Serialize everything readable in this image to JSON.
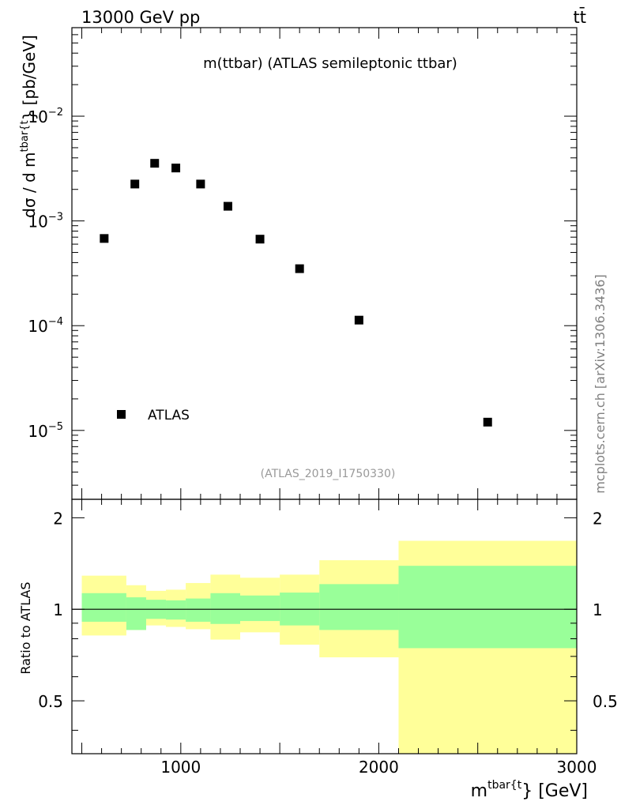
{
  "header": {
    "energy_label": "13000 GeV pp",
    "process_label": "tt̄"
  },
  "side_label": "mcplots.cern.ch [arXiv:1306.3436]",
  "chart_data": [
    {
      "type": "scatter",
      "title": "m(ttbar) (ATLAS semileptonic ttbar)",
      "analysis_label": "(ATLAS_2019_I1750330)",
      "xlabel": "m^{tbar{t}} [GeV]",
      "ylabel": "dσ / d m^{tbar{t}} [pb/GeV]",
      "xlim": [
        450,
        3000
      ],
      "ylim": [
        2.2e-06,
        0.07
      ],
      "yscale": "log",
      "xticks": [
        1000,
        2000,
        3000
      ],
      "ytick_labels": [
        {
          "base": "10",
          "exp": "−2",
          "value": 0.01
        },
        {
          "base": "10",
          "exp": "−3",
          "value": 0.001
        },
        {
          "base": "10",
          "exp": "−4",
          "value": 0.0001
        },
        {
          "base": "10",
          "exp": "−5",
          "value": 1e-05
        }
      ],
      "legend": {
        "placement": "bottom-left",
        "entries": [
          "ATLAS"
        ]
      },
      "series": [
        {
          "name": "ATLAS",
          "marker": "square",
          "color": "#000000",
          "points": [
            {
              "x": 613,
              "y": 0.00068
            },
            {
              "x": 768,
              "y": 0.00225
            },
            {
              "x": 868,
              "y": 0.00355
            },
            {
              "x": 975,
              "y": 0.0032
            },
            {
              "x": 1100,
              "y": 0.00225
            },
            {
              "x": 1238,
              "y": 0.00138
            },
            {
              "x": 1400,
              "y": 0.00067
            },
            {
              "x": 1600,
              "y": 0.00035
            },
            {
              "x": 1900,
              "y": 0.000113
            },
            {
              "x": 2550,
              "y": 1.2e-05
            }
          ]
        }
      ]
    },
    {
      "type": "area",
      "ylabel": "Ratio to ATLAS",
      "xlim": [
        450,
        3000
      ],
      "ylim": [
        0.335,
        2.3
      ],
      "yscale": "log",
      "ytick_labels": [
        "2",
        "1",
        "0.5"
      ],
      "ytick_values": [
        2,
        1,
        0.5
      ],
      "reference_line": 1,
      "colors": {
        "outer_band": "#ffff99",
        "inner_band": "#99ff99",
        "line": "#000000"
      },
      "bins": [
        {
          "lo": 500,
          "hi": 725,
          "inner": [
            0.91,
            1.13
          ],
          "outer": [
            0.82,
            1.29
          ]
        },
        {
          "lo": 725,
          "hi": 825,
          "inner": [
            0.855,
            1.095
          ],
          "outer": [
            0.855,
            1.2
          ]
        },
        {
          "lo": 825,
          "hi": 925,
          "inner": [
            0.93,
            1.075
          ],
          "outer": [
            0.885,
            1.15
          ]
        },
        {
          "lo": 925,
          "hi": 1025,
          "inner": [
            0.925,
            1.07
          ],
          "outer": [
            0.875,
            1.16
          ]
        },
        {
          "lo": 1025,
          "hi": 1150,
          "inner": [
            0.91,
            1.085
          ],
          "outer": [
            0.86,
            1.22
          ]
        },
        {
          "lo": 1150,
          "hi": 1300,
          "inner": [
            0.895,
            1.13
          ],
          "outer": [
            0.795,
            1.3
          ]
        },
        {
          "lo": 1300,
          "hi": 1500,
          "inner": [
            0.915,
            1.11
          ],
          "outer": [
            0.84,
            1.27
          ]
        },
        {
          "lo": 1500,
          "hi": 1700,
          "inner": [
            0.885,
            1.135
          ],
          "outer": [
            0.765,
            1.3
          ]
        },
        {
          "lo": 1700,
          "hi": 2100,
          "inner": [
            0.855,
            1.21
          ],
          "outer": [
            0.695,
            1.45
          ]
        },
        {
          "lo": 2100,
          "hi": 3000,
          "inner": [
            0.745,
            1.39
          ],
          "outer": [
            0.33,
            1.68
          ]
        }
      ]
    }
  ]
}
